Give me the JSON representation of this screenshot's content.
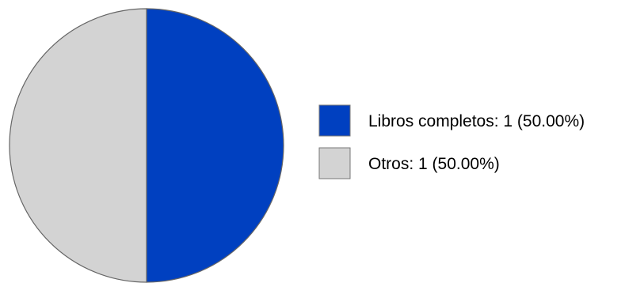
{
  "chart_data": {
    "type": "pie",
    "title": "",
    "slices": [
      {
        "label": "Libros completos",
        "value": 1,
        "percent": 50.0,
        "color": "#0040c0"
      },
      {
        "label": "Otros",
        "value": 1,
        "percent": 50.0,
        "color": "#d3d3d3"
      }
    ],
    "legend": {
      "placement": "right",
      "entries": [
        "Libros completos: 1 (50.00%)",
        "Otros: 1 (50.00%)"
      ]
    }
  },
  "colors": {
    "slice_border": "#666666",
    "legend_border": "#777777"
  }
}
